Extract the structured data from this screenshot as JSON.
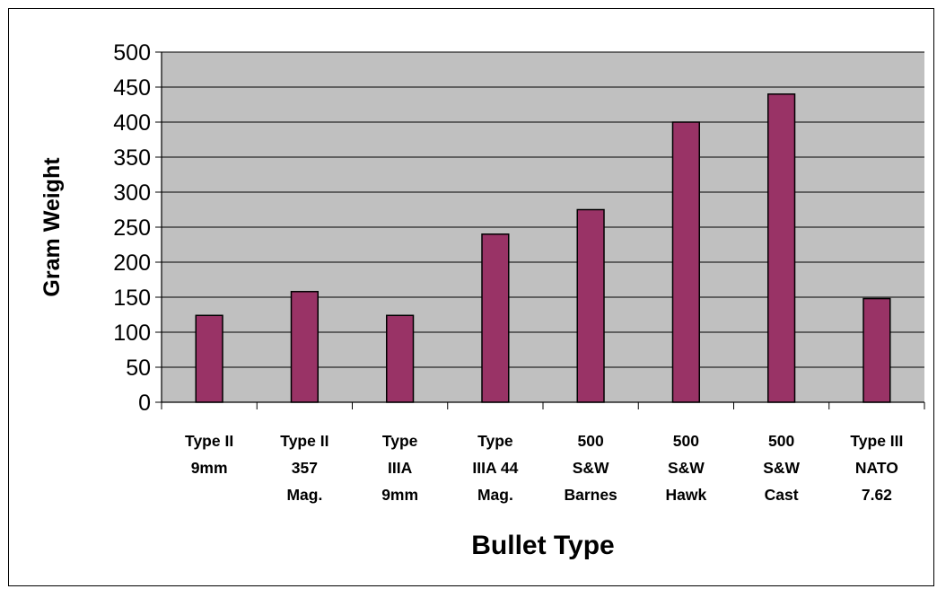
{
  "chart_data": {
    "type": "bar",
    "categories": [
      [
        "Type II",
        "9mm"
      ],
      [
        "Type II",
        "357",
        "Mag."
      ],
      [
        "Type",
        "IIIA",
        "9mm"
      ],
      [
        "Type",
        "IIIA 44",
        "Mag."
      ],
      [
        "500",
        "S&W",
        "Barnes"
      ],
      [
        "500",
        "S&W",
        "Hawk"
      ],
      [
        "500",
        "S&W",
        "Cast"
      ],
      [
        "Type III",
        "NATO",
        "7.62"
      ]
    ],
    "values": [
      124,
      158,
      124,
      240,
      275,
      400,
      440,
      148
    ],
    "title": "",
    "xlabel": "Bullet Type",
    "ylabel": "Gram Weight",
    "ylim": [
      0,
      500
    ],
    "yticks": [
      0,
      50,
      100,
      150,
      200,
      250,
      300,
      350,
      400,
      450,
      500
    ],
    "grid": true,
    "legend": "none",
    "colors": {
      "bar": "#993366",
      "plot_background": "#c0c0c0",
      "gridline": "#000000"
    }
  }
}
